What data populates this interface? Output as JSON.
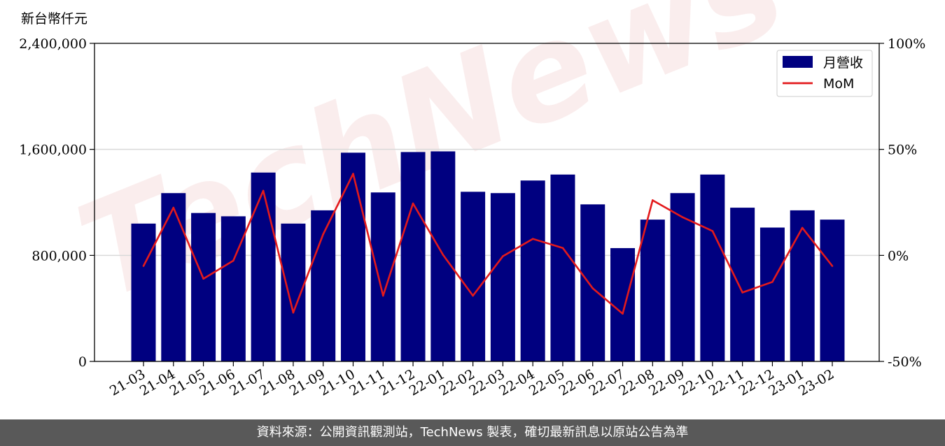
{
  "chart_data": {
    "type": "bar",
    "ylabel": "新台幣仟元",
    "categories": [
      "21-03",
      "21-04",
      "21-05",
      "21-06",
      "21-07",
      "21-08",
      "21-09",
      "21-10",
      "21-11",
      "21-12",
      "22-01",
      "22-02",
      "22-03",
      "22-04",
      "22-05",
      "22-06",
      "22-07",
      "22-08",
      "22-09",
      "22-10",
      "22-11",
      "22-12",
      "23-01",
      "23-02"
    ],
    "series": [
      {
        "name": "月營收",
        "axis": "left",
        "type": "bar",
        "color": "#000080",
        "values": [
          1040000,
          1270000,
          1120000,
          1095000,
          1425000,
          1040000,
          1140000,
          1575000,
          1275000,
          1580000,
          1585000,
          1280000,
          1270000,
          1365000,
          1410000,
          1185000,
          855000,
          1070000,
          1270000,
          1410000,
          1160000,
          1010000,
          1140000,
          1070000
        ]
      },
      {
        "name": "MoM",
        "axis": "right",
        "type": "line",
        "color": "#e31a1c",
        "values": [
          -5,
          22.5,
          -11,
          -2.5,
          30.5,
          -27,
          10,
          38.5,
          -19,
          24.5,
          0.3,
          -19,
          -0.4,
          7.8,
          3.5,
          -15.5,
          -27.5,
          26,
          18,
          11.5,
          -17.5,
          -12.5,
          13,
          -5
        ]
      }
    ],
    "y_left": {
      "ylim": [
        0,
        2400000
      ],
      "ticks": [
        "0",
        "800,000",
        "1,600,000",
        "2,400,000"
      ],
      "tick_values": [
        0,
        800000,
        1600000,
        2400000
      ]
    },
    "y_right": {
      "ylim": [
        -50,
        100
      ],
      "ticks": [
        "-50%",
        "0%",
        "50%",
        "100%"
      ],
      "tick_values": [
        -50,
        0,
        50,
        100
      ]
    },
    "grid": "horizontal",
    "legend": "top-right"
  },
  "watermark": "TechNews",
  "footer": {
    "text": "資料來源：公開資訊觀測站，TechNews 製表，確切最新訊息以原站公告為準"
  },
  "colors": {
    "bar": "#000080",
    "line": "#e31a1c",
    "footer_bg": "#595959"
  }
}
